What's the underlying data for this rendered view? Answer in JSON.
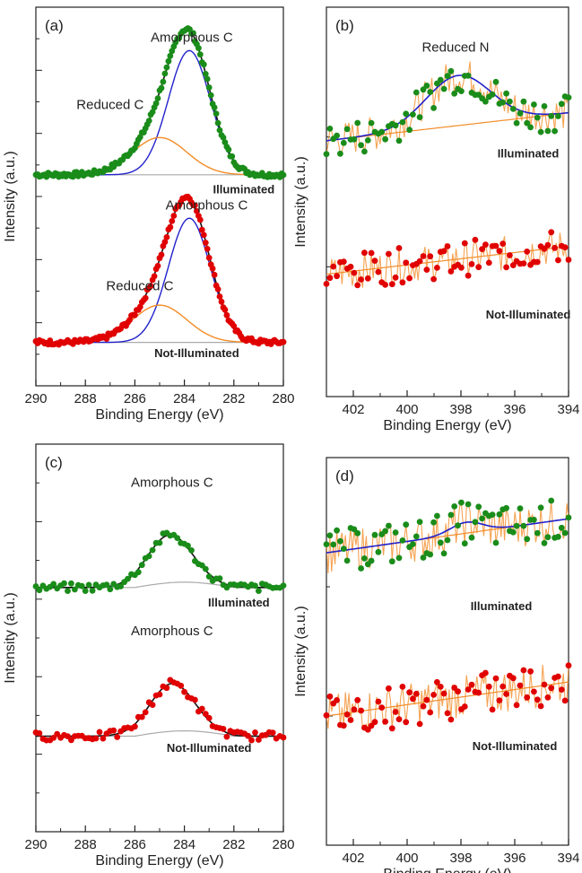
{
  "chart_data": [
    {
      "id": "a",
      "type": "scatter",
      "panel_label": "(a)",
      "xlabel": "Binding Energy (eV)",
      "ylabel": "Intensity (a.u.)",
      "xlim": [
        290,
        280
      ],
      "x_reversed": true,
      "x_ticks": [
        290,
        288,
        286,
        284,
        282,
        280
      ],
      "y_ticks_shown": false,
      "curves": [
        {
          "name": "Illuminated",
          "dots": "#1a8c1a",
          "fit_total": "#111111",
          "components": [
            {
              "label": "Amorphous C",
              "center": 283.8,
              "height": 1.0,
              "width": 0.85,
              "color": "#2222cc"
            },
            {
              "label": "Reduced C",
              "center": 285.0,
              "height": 0.3,
              "width": 1.1,
              "color": "#f28c28"
            }
          ],
          "baseline": 0,
          "offset": 1.35,
          "background_color": "#aaaaaa",
          "label": "Illuminated"
        },
        {
          "name": "Not-Illuminated",
          "dots": "#e00000",
          "fit_total": "#111111",
          "components": [
            {
              "label": "Amorphous C",
              "center": 283.8,
              "height": 1.0,
              "width": 0.85,
              "color": "#2222cc"
            },
            {
              "label": "Reduced C",
              "center": 285.0,
              "height": 0.3,
              "width": 1.1,
              "color": "#f28c28"
            }
          ],
          "baseline": 0,
          "offset": 0.0,
          "background_color": "#aaaaaa",
          "label": "Not-Illuminated"
        }
      ],
      "annotations": [
        {
          "text": "Amorphous C",
          "x": 283.7,
          "y": 2.42
        },
        {
          "text": "Reduced C",
          "x": 287.0,
          "y": 1.88
        },
        {
          "text": "Illuminated",
          "x": 281.6,
          "y": 1.2,
          "bold": true
        },
        {
          "text": "Amorphous C",
          "x": 283.1,
          "y": 1.07
        },
        {
          "text": "Reduced C",
          "x": 285.8,
          "y": 0.42
        },
        {
          "text": "Not-Illuminated",
          "x": 283.5,
          "y": -0.12,
          "bold": true
        }
      ]
    },
    {
      "id": "b",
      "type": "scatter",
      "panel_label": "(b)",
      "xlabel": "Binding Energy (eV)",
      "ylabel": "Intensity (a.u.)",
      "xlim": [
        403,
        394
      ],
      "x_reversed": true,
      "x_ticks": [
        402,
        400,
        398,
        396,
        394
      ],
      "y_ticks_shown": false,
      "curves": [
        {
          "name": "Illuminated",
          "dots": "#1a8c1a",
          "peak": {
            "center": 398.1,
            "height": 0.45,
            "width": 1.2,
            "color": "#2222cc"
          },
          "background_color": "#f28c28",
          "offset": 1.2,
          "label": "Illuminated"
        },
        {
          "name": "Not-Illuminated",
          "dots": "#e00000",
          "background_color": "#f28c28",
          "offset": 0.0,
          "label": "Not-Illuminated"
        }
      ],
      "annotations": [
        {
          "text": "Reduced N",
          "x": 398.2,
          "y": 2.0
        },
        {
          "text": "Illuminated",
          "x": 395.5,
          "y": 1.05,
          "bold": true
        },
        {
          "text": "Not-Illuminated",
          "x": 395.5,
          "y": -0.4,
          "bold": true
        }
      ]
    },
    {
      "id": "c",
      "type": "scatter",
      "panel_label": "(c)",
      "xlabel": "Binding Energy (eV)",
      "ylabel": "Intensity (a.u.)",
      "xlim": [
        290,
        280
      ],
      "x_reversed": true,
      "x_ticks": [
        290,
        288,
        286,
        284,
        282,
        280
      ],
      "y_ticks_shown": false,
      "curves": [
        {
          "name": "Illuminated",
          "dots": "#1a8c1a",
          "peak": {
            "center": 284.6,
            "height": 0.45,
            "width": 0.9,
            "color": "#111111"
          },
          "background_color": "#aaaaaa",
          "offset": 1.4,
          "label": "Illuminated"
        },
        {
          "name": "Not-Illuminated",
          "dots": "#e00000",
          "peak": {
            "center": 284.5,
            "height": 0.45,
            "width": 0.9,
            "color": "#111111"
          },
          "background_color": "#aaaaaa",
          "offset": 0.0,
          "label": "Not-Illuminated"
        }
      ],
      "annotations": [
        {
          "text": "Amorphous C",
          "x": 284.5,
          "y": 2.35
        },
        {
          "text": "Illuminated",
          "x": 281.8,
          "y": 1.22,
          "bold": true
        },
        {
          "text": "Amorphous C",
          "x": 284.5,
          "y": 0.95
        },
        {
          "text": "Not-Illuminated",
          "x": 283.0,
          "y": -0.15,
          "bold": true
        }
      ]
    },
    {
      "id": "d",
      "type": "scatter",
      "panel_label": "(d)",
      "xlabel": "Binding Energy (eV)",
      "ylabel": "Intensity (a.u.)",
      "xlim": [
        403,
        394
      ],
      "x_reversed": true,
      "x_ticks": [
        402,
        400,
        398,
        396,
        394
      ],
      "y_ticks_shown": false,
      "curves": [
        {
          "name": "Illuminated",
          "dots": "#1a8c1a",
          "peak": {
            "center": 397.8,
            "height": 0.08,
            "width": 0.6,
            "color": "#2222cc"
          },
          "background_color": "#f28c28",
          "offset": 1.2,
          "label": "Illuminated"
        },
        {
          "name": "Not-Illuminated",
          "dots": "#e00000",
          "background_color": "#f28c28",
          "offset": 0.0,
          "label": "Not-Illuminated"
        }
      ],
      "annotations": [
        {
          "text": "Illuminated",
          "x": 396.5,
          "y": 0.78,
          "bold": true
        },
        {
          "text": "Not-Illuminated",
          "x": 396.0,
          "y": -0.25,
          "bold": true
        }
      ]
    }
  ]
}
